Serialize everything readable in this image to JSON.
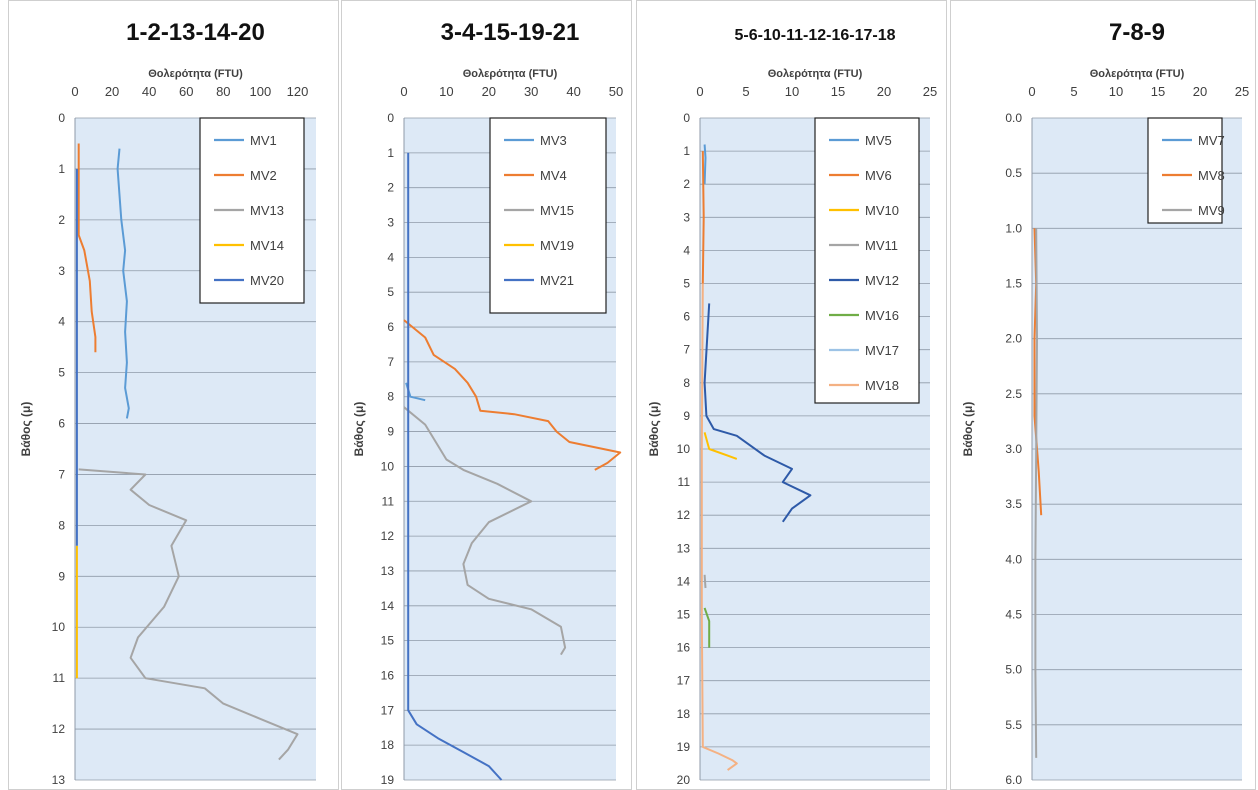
{
  "chart_data": [
    {
      "type": "line",
      "title": "1-2-13-14-20",
      "xlabel": "Θολερότητα (FTU)",
      "ylabel": "Βάθος (μ)",
      "xlim": [
        0,
        130
      ],
      "x_ticks": [
        0,
        20,
        40,
        60,
        80,
        100,
        120
      ],
      "ylim": [
        0,
        13
      ],
      "y_ticks": [
        0,
        1,
        2,
        3,
        4,
        5,
        6,
        7,
        8,
        9,
        10,
        11,
        12,
        13
      ],
      "y_inverted": true,
      "x_axis_position": "top",
      "grid": "horizontal",
      "legend_position": "top-right",
      "series": [
        {
          "name": "MV1",
          "color": "#5b9bd5",
          "points": [
            [
              24,
              0.6
            ],
            [
              23,
              1.0
            ],
            [
              25,
              2.0
            ],
            [
              27,
              2.6
            ],
            [
              26,
              3.0
            ],
            [
              28,
              3.6
            ],
            [
              27,
              4.2
            ],
            [
              28,
              4.8
            ],
            [
              27,
              5.3
            ],
            [
              29,
              5.7
            ],
            [
              28,
              5.9
            ]
          ]
        },
        {
          "name": "MV2",
          "color": "#ed7d31",
          "points": [
            [
              2,
              0.5
            ],
            [
              2,
              1.0
            ],
            [
              2,
              1.8
            ],
            [
              2,
              2.3
            ],
            [
              5,
              2.6
            ],
            [
              8,
              3.2
            ],
            [
              9,
              3.8
            ],
            [
              11,
              4.3
            ],
            [
              11,
              4.6
            ]
          ]
        },
        {
          "name": "MV13",
          "color": "#a5a5a5",
          "points": [
            [
              2,
              6.9
            ],
            [
              38,
              7.0
            ],
            [
              30,
              7.3
            ],
            [
              40,
              7.6
            ],
            [
              60,
              7.9
            ],
            [
              52,
              8.4
            ],
            [
              56,
              9.0
            ],
            [
              48,
              9.6
            ],
            [
              34,
              10.2
            ],
            [
              30,
              10.6
            ],
            [
              38,
              11.0
            ],
            [
              70,
              11.2
            ],
            [
              80,
              11.5
            ],
            [
              100,
              11.8
            ],
            [
              120,
              12.1
            ],
            [
              115,
              12.4
            ],
            [
              110,
              12.6
            ]
          ]
        },
        {
          "name": "MV14",
          "color": "#ffc000",
          "points": [
            [
              1,
              8.4
            ],
            [
              1,
              9.5
            ],
            [
              1,
              10.5
            ],
            [
              1,
              11.0
            ]
          ]
        },
        {
          "name": "MV20",
          "color": "#4472c4",
          "points": [
            [
              1,
              1.0
            ],
            [
              1,
              3.0
            ],
            [
              1,
              5.0
            ],
            [
              1,
              7.0
            ],
            [
              1,
              8.4
            ]
          ]
        }
      ]
    },
    {
      "type": "line",
      "title": "3-4-15-19-21",
      "xlabel": "Θολερότητα (FTU)",
      "ylabel": "Βάθος (μ)",
      "xlim": [
        0,
        50
      ],
      "x_ticks": [
        0,
        10,
        20,
        30,
        40,
        50
      ],
      "ylim": [
        0,
        19
      ],
      "y_ticks": [
        0,
        1,
        2,
        3,
        4,
        5,
        6,
        7,
        8,
        9,
        10,
        11,
        12,
        13,
        14,
        15,
        16,
        17,
        18,
        19
      ],
      "y_inverted": true,
      "x_axis_position": "top",
      "grid": "horizontal",
      "legend_position": "top-right",
      "series": [
        {
          "name": "MV3",
          "color": "#5b9bd5",
          "points": [
            [
              0.5,
              7.6
            ],
            [
              1.5,
              8.0
            ],
            [
              5,
              8.1
            ]
          ]
        },
        {
          "name": "MV4",
          "color": "#ed7d31",
          "points": [
            [
              0,
              5.8
            ],
            [
              5,
              6.3
            ],
            [
              7,
              6.8
            ],
            [
              12,
              7.2
            ],
            [
              15,
              7.6
            ],
            [
              17,
              8.0
            ],
            [
              18,
              8.4
            ],
            [
              26,
              8.5
            ],
            [
              34,
              8.7
            ],
            [
              36,
              9.0
            ],
            [
              39,
              9.3
            ],
            [
              47,
              9.5
            ],
            [
              51,
              9.6
            ],
            [
              48,
              9.9
            ],
            [
              45,
              10.1
            ]
          ]
        },
        {
          "name": "MV15",
          "color": "#a5a5a5",
          "points": [
            [
              0,
              8.3
            ],
            [
              5,
              8.8
            ],
            [
              8,
              9.4
            ],
            [
              10,
              9.8
            ],
            [
              14,
              10.1
            ],
            [
              22,
              10.5
            ],
            [
              30,
              11.0
            ],
            [
              20,
              11.6
            ],
            [
              16,
              12.2
            ],
            [
              14,
              12.8
            ],
            [
              15,
              13.4
            ],
            [
              20,
              13.8
            ],
            [
              30,
              14.1
            ],
            [
              37,
              14.6
            ],
            [
              38,
              15.2
            ],
            [
              37,
              15.4
            ]
          ]
        },
        {
          "name": "MV19",
          "color": "#ffc000",
          "points": []
        },
        {
          "name": "MV21",
          "color": "#4472c4",
          "points": [
            [
              1,
              1.0
            ],
            [
              1,
              5.0
            ],
            [
              1,
              10.0
            ],
            [
              1,
              14.0
            ],
            [
              1,
              17.0
            ],
            [
              3,
              17.4
            ],
            [
              8,
              17.8
            ],
            [
              14,
              18.2
            ],
            [
              20,
              18.6
            ],
            [
              23,
              19.0
            ]
          ]
        }
      ]
    },
    {
      "type": "line",
      "title": "5-6-10-11-12-16-17-18",
      "xlabel": "Θολερότητα (FTU)",
      "ylabel": "Βάθος (μ)",
      "xlim": [
        0,
        25
      ],
      "x_ticks": [
        0,
        5,
        10,
        15,
        20,
        25
      ],
      "ylim": [
        0,
        20
      ],
      "y_ticks": [
        0,
        1,
        2,
        3,
        4,
        5,
        6,
        7,
        8,
        9,
        10,
        11,
        12,
        13,
        14,
        15,
        16,
        17,
        18,
        19,
        20
      ],
      "y_inverted": true,
      "x_axis_position": "top",
      "grid": "horizontal",
      "legend_position": "top-right",
      "series": [
        {
          "name": "MV5",
          "color": "#5b9bd5",
          "points": [
            [
              0.5,
              0.8
            ],
            [
              0.6,
              1.2
            ],
            [
              0.5,
              2.0
            ]
          ]
        },
        {
          "name": "MV6",
          "color": "#ed7d31",
          "points": [
            [
              0.3,
              1.0
            ],
            [
              0.4,
              3.0
            ],
            [
              0.3,
              5.0
            ]
          ]
        },
        {
          "name": "MV10",
          "color": "#ffc000",
          "points": [
            [
              0.5,
              9.5
            ],
            [
              1,
              10.0
            ],
            [
              3,
              10.2
            ],
            [
              4,
              10.3
            ]
          ]
        },
        {
          "name": "MV11",
          "color": "#a5a5a5",
          "points": [
            [
              0.5,
              13.8
            ],
            [
              0.6,
              14.2
            ]
          ]
        },
        {
          "name": "MV12",
          "color": "#2e5aa8",
          "points": [
            [
              1,
              5.6
            ],
            [
              0.5,
              8.0
            ],
            [
              0.7,
              9.0
            ],
            [
              1.5,
              9.4
            ],
            [
              4,
              9.6
            ],
            [
              7,
              10.2
            ],
            [
              10,
              10.6
            ],
            [
              9,
              11.0
            ],
            [
              12,
              11.4
            ],
            [
              10,
              11.8
            ],
            [
              9,
              12.2
            ]
          ]
        },
        {
          "name": "MV16",
          "color": "#70ad47",
          "points": [
            [
              0.5,
              14.8
            ],
            [
              1,
              15.2
            ],
            [
              1,
              16.0
            ]
          ]
        },
        {
          "name": "MV17",
          "color": "#9dc3e6",
          "points": []
        },
        {
          "name": "MV18",
          "color": "#f4b183",
          "points": [
            [
              0.3,
              5.0
            ],
            [
              0.2,
              10.0
            ],
            [
              0.2,
              15.0
            ],
            [
              0.3,
              19.0
            ],
            [
              2,
              19.2
            ],
            [
              3.5,
              19.4
            ],
            [
              4,
              19.5
            ],
            [
              3,
              19.7
            ]
          ]
        }
      ]
    },
    {
      "type": "line",
      "title": "7-8-9",
      "xlabel": "Θολερότητα (FTU)",
      "ylabel": "Βάθος (μ)",
      "xlim": [
        0,
        25
      ],
      "x_ticks": [
        0,
        5,
        10,
        15,
        20,
        25
      ],
      "ylim": [
        0,
        6
      ],
      "y_ticks": [
        "0.0",
        "0.5",
        "1.0",
        "1.5",
        "2.0",
        "2.5",
        "3.0",
        "3.5",
        "4.0",
        "4.5",
        "5.0",
        "5.5",
        "6.0"
      ],
      "y_inverted": true,
      "x_axis_position": "top",
      "grid": "horizontal",
      "legend_position": "top-right",
      "series": [
        {
          "name": "MV7",
          "color": "#5b9bd5",
          "points": []
        },
        {
          "name": "MV8",
          "color": "#ed7d31",
          "points": [
            [
              0.3,
              1.0
            ],
            [
              0.5,
              1.5
            ],
            [
              0.3,
              2.0
            ],
            [
              0.3,
              2.7
            ],
            [
              0.8,
              3.2
            ],
            [
              1.1,
              3.6
            ]
          ]
        },
        {
          "name": "MV9",
          "color": "#a5a5a5",
          "points": [
            [
              0.5,
              1.0
            ],
            [
              0.6,
              2.0
            ],
            [
              0.5,
              3.0
            ],
            [
              0.4,
              4.0
            ],
            [
              0.4,
              5.0
            ],
            [
              0.5,
              5.8
            ]
          ]
        }
      ]
    }
  ]
}
